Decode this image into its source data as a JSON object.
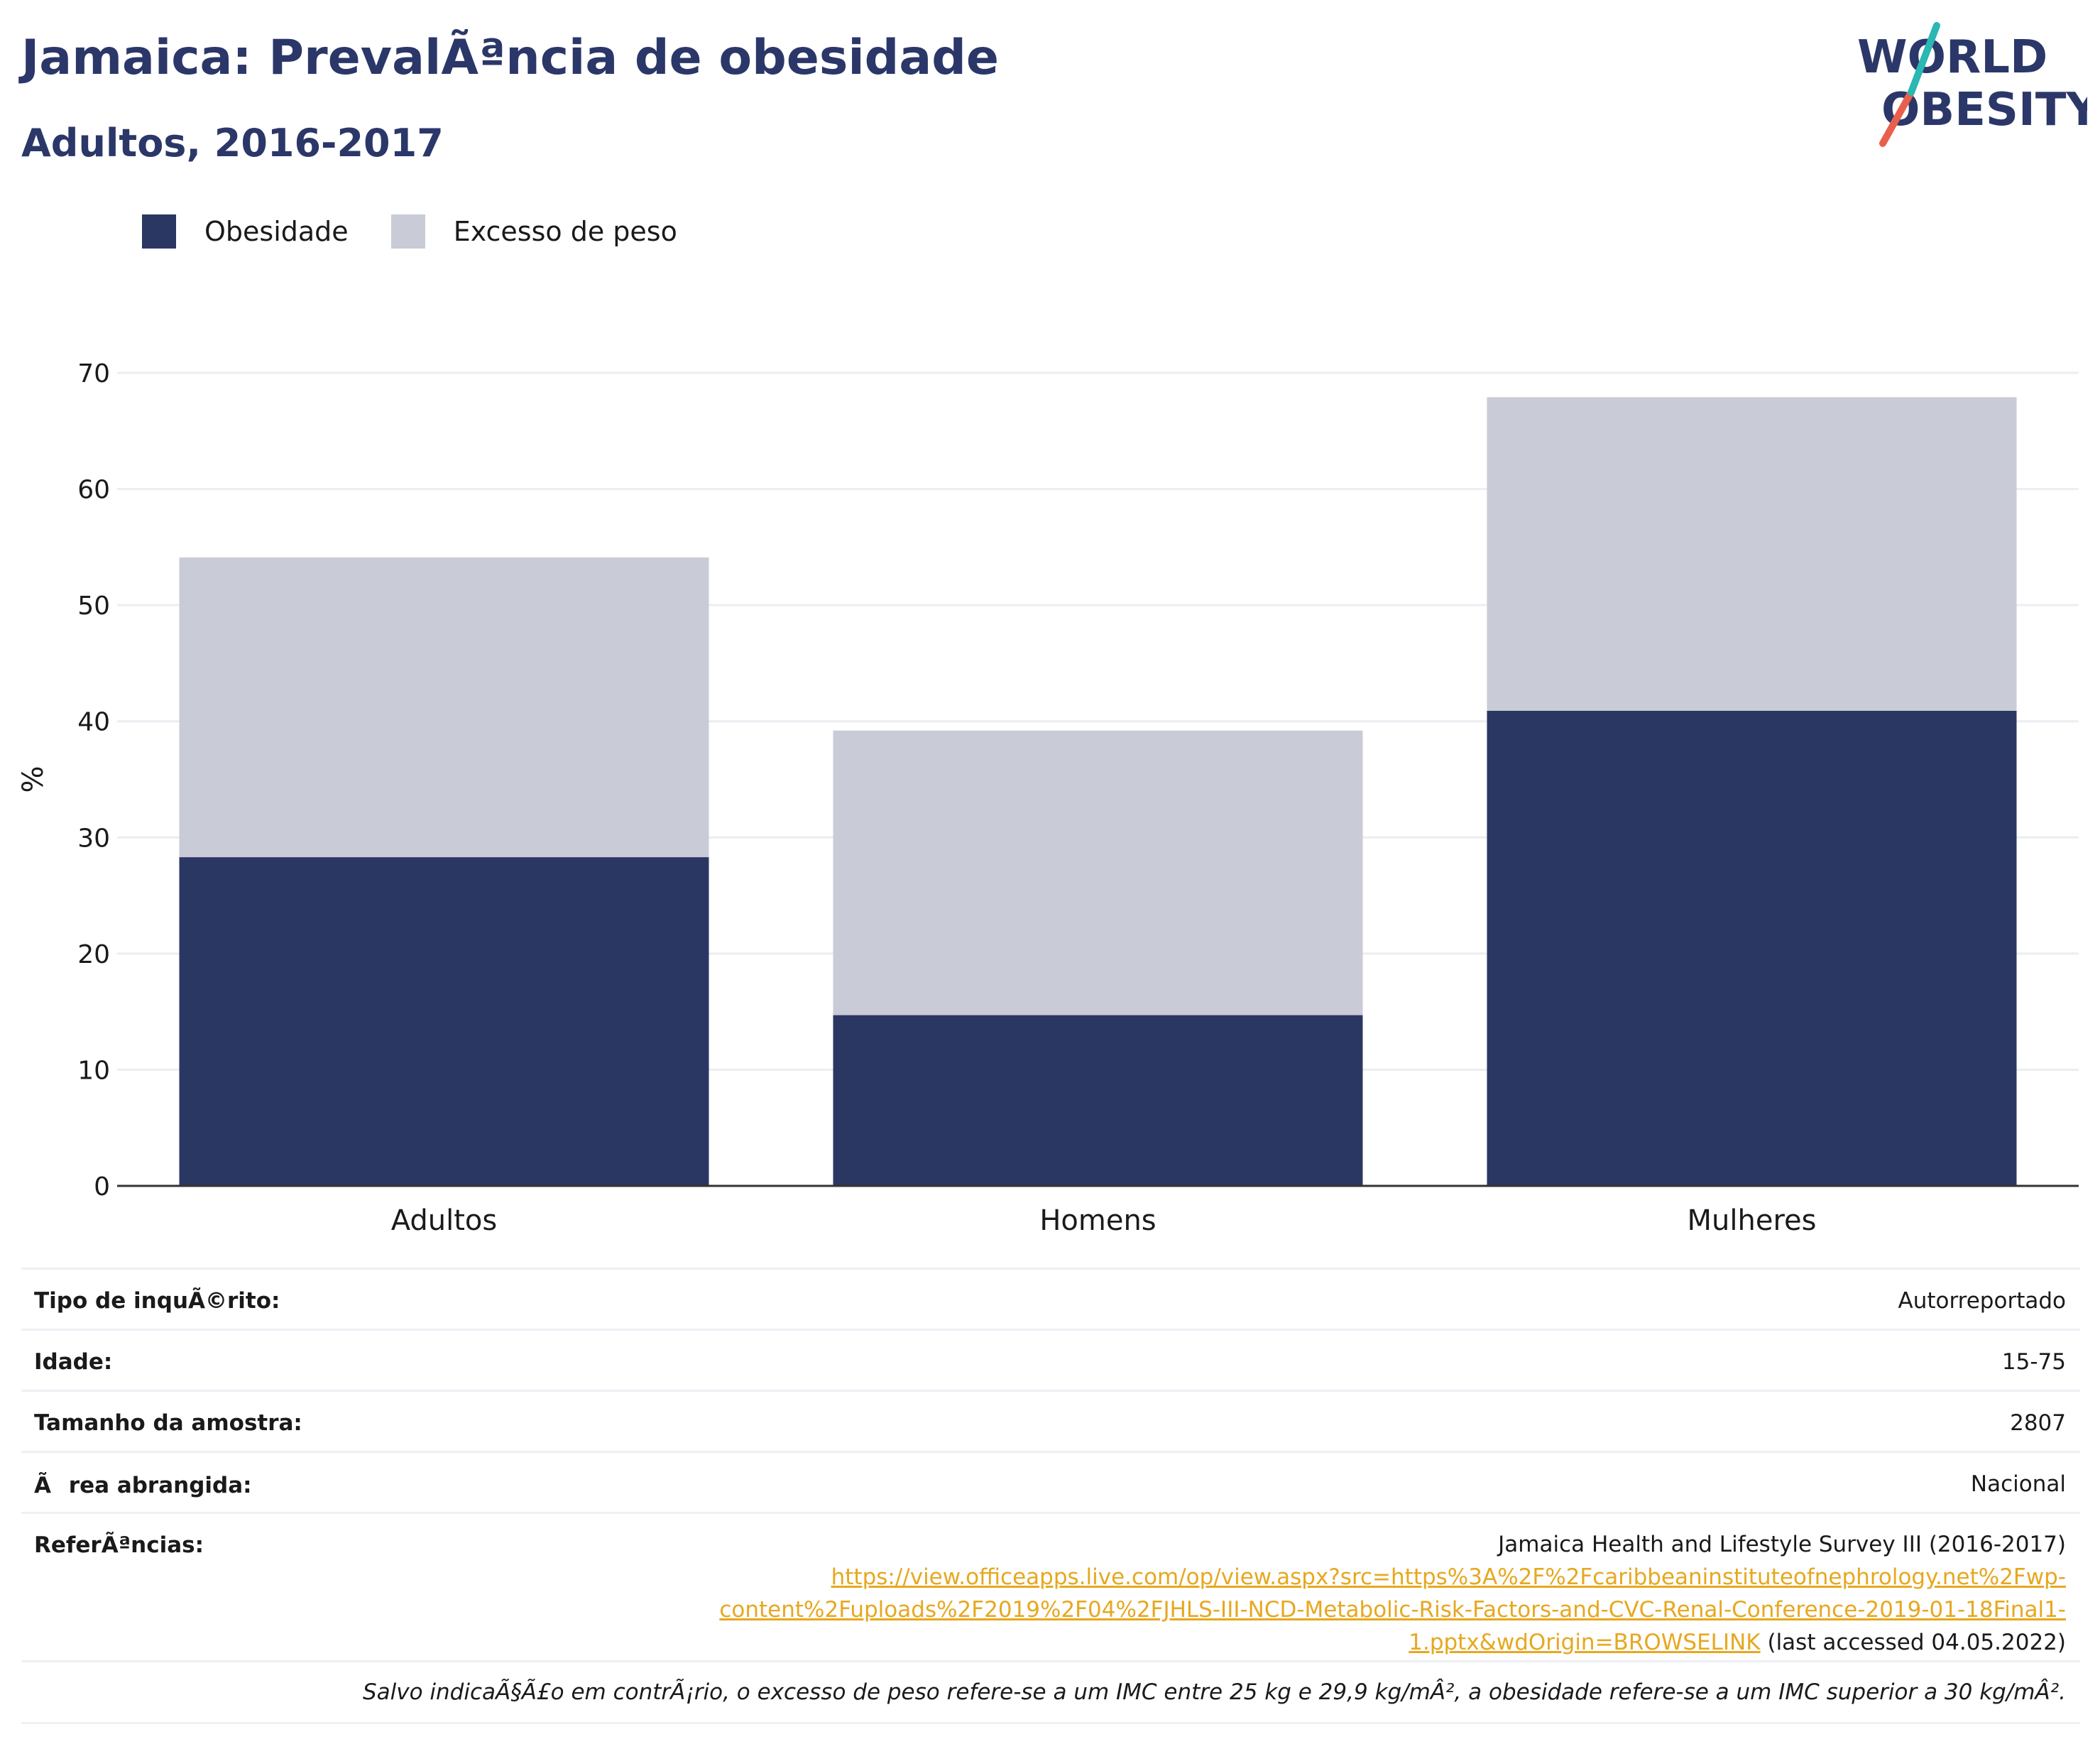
{
  "header": {
    "title": "Jamaica: PrevalÃªncia de obesidade",
    "subtitle": "Adultos, 2016-2017",
    "logo_line1": "WORLD",
    "logo_line2": "OBESITY"
  },
  "colors": {
    "obesity": "#2b3763",
    "overweight": "#c9cbd6",
    "title": "#2b3768",
    "link": "#e6a820",
    "logo_teal": "#2bb7b3",
    "logo_red": "#e8604c"
  },
  "chart_data": {
    "type": "bar",
    "stacked": true,
    "categories": [
      "Adultos",
      "Homens",
      "Mulheres"
    ],
    "series": [
      {
        "name": "Obesidade",
        "values": [
          28.3,
          14.7,
          40.9
        ]
      },
      {
        "name": "Excesso de peso",
        "values": [
          25.8,
          24.5,
          27.0
        ]
      }
    ],
    "title": "Jamaica: PrevalÃªncia de obesidade",
    "subtitle": "Adultos, 2016-2017",
    "xlabel": "",
    "ylabel": "%",
    "ylim": [
      0,
      70
    ],
    "yticks": [
      0,
      10,
      20,
      30,
      40,
      50,
      60,
      70
    ],
    "grid": true,
    "legend_position": "top-left"
  },
  "info": {
    "survey_type_label": "Tipo de inquÃ©rito:",
    "survey_type_value": "Autorreportado",
    "age_label": "Idade:",
    "age_value": "15-75",
    "sample_label": "Tamanho da amostra:",
    "sample_value": "2807",
    "area_label": "Ãrea abrangida:",
    "area_value": "Nacional",
    "refs_label": "ReferÃªncias:",
    "ref_title": "Jamaica Health and Lifestyle Survey III (2016-2017)",
    "ref_url_1": "https://view.officeapps.live.com/op/view.aspx?src=https%3A%2F%2Fcaribbeaninstituteofnephrology.net%2Fwp-",
    "ref_url_2": "content%2Fuploads%2F2019%2F04%2FJHLS-III-NCD-Metabolic-Risk-Factors-and-CVC-Renal-Conference-2019-01-18Final1-",
    "ref_url_3": "1.pptx&wdOrigin=BROWSELINK",
    "ref_accessed": " (last accessed 04.05.2022)",
    "footnote": "Salvo indicaÃ§Ã£o em contrÃ¡rio, o excesso de peso refere-se a um IMC entre 25 kg e 29,9 kg/mÂ², a obesidade refere-se a um IMC superior a 30 kg/mÂ²."
  }
}
